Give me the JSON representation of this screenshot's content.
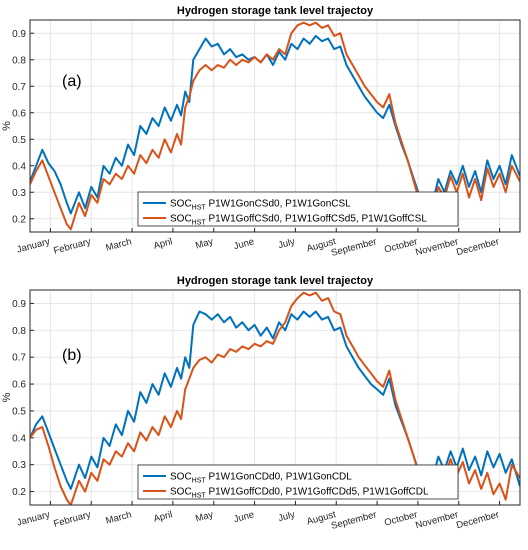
{
  "colors": {
    "series1": "#0072BD",
    "series2": "#D95319",
    "grid": "#e6e6e6",
    "axis": "#262626"
  },
  "chart_data": [
    {
      "type": "line",
      "title": "Hydrogen storage tank level trajectoy",
      "panel_label": "(a)",
      "ylabel": "%",
      "xlabel": "",
      "ylim": [
        0.15,
        0.95
      ],
      "yticks": [
        "0.2",
        "0.3",
        "0.4",
        "0.5",
        "0.6",
        "0.7",
        "0.8",
        "0.9"
      ],
      "xlim": [
        0,
        12
      ],
      "months": [
        "January",
        "February",
        "March",
        "April",
        "May",
        "June",
        "July",
        "August",
        "September",
        "October",
        "November",
        "December"
      ],
      "grid": true,
      "legend_position": "lower-left",
      "series": [
        {
          "name_base": "SOC",
          "name_sub": "HST",
          "name_rest": " P1W1GonCSd0, P1W1GonCSL",
          "x": [
            0,
            0.15,
            0.3,
            0.45,
            0.6,
            0.75,
            0.9,
            1.0,
            1.2,
            1.35,
            1.5,
            1.65,
            1.8,
            1.95,
            2.1,
            2.25,
            2.4,
            2.55,
            2.7,
            2.85,
            3.0,
            3.15,
            3.3,
            3.45,
            3.6,
            3.7,
            3.8,
            3.9,
            4.0,
            4.15,
            4.3,
            4.45,
            4.6,
            4.75,
            4.9,
            5.05,
            5.2,
            5.35,
            5.5,
            5.65,
            5.8,
            5.95,
            6.1,
            6.25,
            6.4,
            6.55,
            6.7,
            6.85,
            7.0,
            7.15,
            7.3,
            7.45,
            7.6,
            7.75,
            7.9,
            8.05,
            8.2,
            8.35,
            8.5,
            8.65,
            8.8,
            8.95,
            9.1,
            9.25,
            9.4,
            9.55,
            9.7,
            9.85,
            10.0,
            10.15,
            10.3,
            10.45,
            10.6,
            10.75,
            10.9,
            11.05,
            11.2,
            11.35,
            11.5,
            11.65,
            11.8,
            12.0
          ],
          "y": [
            0.34,
            0.4,
            0.46,
            0.41,
            0.38,
            0.33,
            0.26,
            0.22,
            0.3,
            0.24,
            0.32,
            0.28,
            0.4,
            0.37,
            0.43,
            0.4,
            0.48,
            0.44,
            0.55,
            0.52,
            0.58,
            0.55,
            0.62,
            0.57,
            0.63,
            0.59,
            0.68,
            0.64,
            0.8,
            0.84,
            0.88,
            0.85,
            0.86,
            0.82,
            0.84,
            0.81,
            0.82,
            0.8,
            0.81,
            0.79,
            0.82,
            0.78,
            0.83,
            0.8,
            0.86,
            0.84,
            0.88,
            0.86,
            0.89,
            0.87,
            0.88,
            0.84,
            0.85,
            0.78,
            0.74,
            0.7,
            0.66,
            0.63,
            0.6,
            0.58,
            0.63,
            0.55,
            0.48,
            0.42,
            0.35,
            0.28,
            0.22,
            0.25,
            0.35,
            0.3,
            0.38,
            0.33,
            0.4,
            0.32,
            0.38,
            0.3,
            0.42,
            0.35,
            0.4,
            0.33,
            0.44,
            0.36
          ]
        },
        {
          "name_base": "SOC",
          "name_sub": "HST",
          "name_rest": " P1W1GoffCSd0, P1W1GoffCSd5, P1W1GoffCSL",
          "x": [
            0,
            0.15,
            0.3,
            0.45,
            0.6,
            0.75,
            0.9,
            1.0,
            1.2,
            1.35,
            1.5,
            1.65,
            1.8,
            1.95,
            2.1,
            2.25,
            2.4,
            2.55,
            2.7,
            2.85,
            3.0,
            3.15,
            3.3,
            3.45,
            3.6,
            3.7,
            3.8,
            3.9,
            4.0,
            4.15,
            4.3,
            4.45,
            4.6,
            4.75,
            4.9,
            5.05,
            5.2,
            5.35,
            5.5,
            5.65,
            5.8,
            5.95,
            6.1,
            6.25,
            6.4,
            6.55,
            6.7,
            6.85,
            7.0,
            7.15,
            7.3,
            7.45,
            7.6,
            7.75,
            7.9,
            8.05,
            8.2,
            8.35,
            8.5,
            8.65,
            8.8,
            8.95,
            9.1,
            9.25,
            9.4,
            9.55,
            9.7,
            9.85,
            10.0,
            10.15,
            10.3,
            10.45,
            10.6,
            10.75,
            10.9,
            11.05,
            11.2,
            11.35,
            11.5,
            11.65,
            11.8,
            12.0
          ],
          "y": [
            0.33,
            0.38,
            0.42,
            0.36,
            0.3,
            0.24,
            0.18,
            0.16,
            0.26,
            0.21,
            0.29,
            0.26,
            0.35,
            0.33,
            0.37,
            0.35,
            0.4,
            0.37,
            0.44,
            0.41,
            0.46,
            0.43,
            0.5,
            0.45,
            0.52,
            0.48,
            0.62,
            0.66,
            0.72,
            0.76,
            0.78,
            0.76,
            0.78,
            0.77,
            0.8,
            0.78,
            0.8,
            0.79,
            0.81,
            0.79,
            0.82,
            0.8,
            0.84,
            0.82,
            0.9,
            0.93,
            0.94,
            0.93,
            0.94,
            0.92,
            0.93,
            0.89,
            0.9,
            0.82,
            0.78,
            0.74,
            0.7,
            0.67,
            0.64,
            0.62,
            0.67,
            0.56,
            0.49,
            0.42,
            0.34,
            0.26,
            0.2,
            0.22,
            0.32,
            0.28,
            0.36,
            0.3,
            0.37,
            0.28,
            0.35,
            0.27,
            0.39,
            0.32,
            0.37,
            0.3,
            0.4,
            0.34
          ]
        }
      ]
    },
    {
      "type": "line",
      "title": "Hydrogen storage tank level trajectoy",
      "panel_label": "(b)",
      "ylabel": "%",
      "xlabel": "",
      "ylim": [
        0.15,
        0.95
      ],
      "yticks": [
        "0.2",
        "0.3",
        "0.4",
        "0.5",
        "0.6",
        "0.7",
        "0.8",
        "0.9"
      ],
      "xlim": [
        0,
        12
      ],
      "months": [
        "January",
        "February",
        "March",
        "April",
        "May",
        "June",
        "July",
        "August",
        "September",
        "October",
        "November",
        "December"
      ],
      "grid": true,
      "legend_position": "lower-left",
      "series": [
        {
          "name_base": "SOC",
          "name_sub": "HST",
          "name_rest": " P1W1GonCDd0, P1W1GonCDL",
          "x": [
            0,
            0.15,
            0.3,
            0.45,
            0.6,
            0.75,
            0.9,
            1.0,
            1.2,
            1.35,
            1.5,
            1.65,
            1.8,
            1.95,
            2.1,
            2.25,
            2.4,
            2.55,
            2.7,
            2.85,
            3.0,
            3.15,
            3.3,
            3.45,
            3.6,
            3.7,
            3.8,
            3.9,
            4.0,
            4.15,
            4.3,
            4.45,
            4.6,
            4.75,
            4.9,
            5.05,
            5.2,
            5.35,
            5.5,
            5.65,
            5.8,
            5.95,
            6.1,
            6.25,
            6.4,
            6.55,
            6.7,
            6.85,
            7.0,
            7.15,
            7.3,
            7.45,
            7.6,
            7.75,
            7.9,
            8.05,
            8.2,
            8.35,
            8.5,
            8.65,
            8.8,
            8.95,
            9.1,
            9.25,
            9.4,
            9.55,
            9.7,
            9.85,
            10.0,
            10.15,
            10.3,
            10.45,
            10.6,
            10.75,
            10.9,
            11.05,
            11.2,
            11.35,
            11.5,
            11.65,
            11.8,
            12.0
          ],
          "y": [
            0.4,
            0.45,
            0.48,
            0.42,
            0.36,
            0.3,
            0.24,
            0.21,
            0.3,
            0.25,
            0.33,
            0.29,
            0.4,
            0.37,
            0.45,
            0.41,
            0.5,
            0.46,
            0.57,
            0.53,
            0.6,
            0.56,
            0.64,
            0.59,
            0.66,
            0.62,
            0.7,
            0.66,
            0.82,
            0.87,
            0.86,
            0.84,
            0.86,
            0.83,
            0.85,
            0.81,
            0.83,
            0.8,
            0.82,
            0.78,
            0.81,
            0.77,
            0.83,
            0.8,
            0.86,
            0.84,
            0.87,
            0.85,
            0.87,
            0.84,
            0.85,
            0.8,
            0.81,
            0.74,
            0.7,
            0.66,
            0.63,
            0.6,
            0.58,
            0.56,
            0.62,
            0.52,
            0.46,
            0.4,
            0.33,
            0.26,
            0.2,
            0.24,
            0.33,
            0.28,
            0.35,
            0.29,
            0.36,
            0.28,
            0.33,
            0.26,
            0.35,
            0.29,
            0.34,
            0.27,
            0.32,
            0.22
          ]
        },
        {
          "name_base": "SOC",
          "name_sub": "HST",
          "name_rest": " P1W1GoffCDd0, P1W1GoffCDd5, P1W1GoffCDL",
          "x": [
            0,
            0.15,
            0.3,
            0.45,
            0.6,
            0.75,
            0.9,
            1.0,
            1.2,
            1.35,
            1.5,
            1.65,
            1.8,
            1.95,
            2.1,
            2.25,
            2.4,
            2.55,
            2.7,
            2.85,
            3.0,
            3.15,
            3.3,
            3.45,
            3.6,
            3.7,
            3.8,
            3.9,
            4.0,
            4.15,
            4.3,
            4.45,
            4.6,
            4.75,
            4.9,
            5.05,
            5.2,
            5.35,
            5.5,
            5.65,
            5.8,
            5.95,
            6.1,
            6.25,
            6.4,
            6.55,
            6.7,
            6.85,
            7.0,
            7.15,
            7.3,
            7.45,
            7.6,
            7.75,
            7.9,
            8.05,
            8.2,
            8.35,
            8.5,
            8.65,
            8.8,
            8.95,
            9.1,
            9.25,
            9.4,
            9.55,
            9.7,
            9.85,
            10.0,
            10.15,
            10.3,
            10.45,
            10.6,
            10.75,
            10.9,
            11.05,
            11.2,
            11.35,
            11.5,
            11.65,
            11.8,
            12.0
          ],
          "y": [
            0.4,
            0.43,
            0.44,
            0.37,
            0.29,
            0.22,
            0.17,
            0.15,
            0.24,
            0.2,
            0.27,
            0.24,
            0.32,
            0.3,
            0.35,
            0.33,
            0.38,
            0.35,
            0.42,
            0.39,
            0.44,
            0.41,
            0.48,
            0.44,
            0.5,
            0.47,
            0.58,
            0.62,
            0.66,
            0.69,
            0.7,
            0.68,
            0.71,
            0.7,
            0.73,
            0.72,
            0.74,
            0.73,
            0.75,
            0.74,
            0.76,
            0.75,
            0.8,
            0.83,
            0.89,
            0.92,
            0.94,
            0.93,
            0.94,
            0.91,
            0.92,
            0.87,
            0.86,
            0.78,
            0.74,
            0.7,
            0.67,
            0.64,
            0.61,
            0.59,
            0.65,
            0.54,
            0.47,
            0.4,
            0.33,
            0.25,
            0.18,
            0.2,
            0.29,
            0.25,
            0.32,
            0.26,
            0.31,
            0.23,
            0.28,
            0.21,
            0.27,
            0.19,
            0.23,
            0.17,
            0.3,
            0.25
          ]
        }
      ]
    }
  ]
}
